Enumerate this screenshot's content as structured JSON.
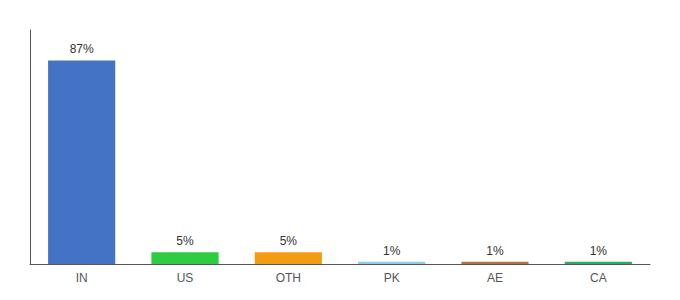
{
  "chart_data": {
    "type": "bar",
    "categories": [
      "IN",
      "US",
      "OTH",
      "PK",
      "AE",
      "CA"
    ],
    "values": [
      87,
      5,
      5,
      1,
      1,
      1
    ],
    "value_labels": [
      "87%",
      "5%",
      "5%",
      "1%",
      "1%",
      "1%"
    ],
    "colors": [
      "#4472c4",
      "#2ecc40",
      "#f39c12",
      "#87ceeb",
      "#c07030",
      "#27ae60"
    ],
    "ylim": [
      0,
      100
    ],
    "data_labels": true,
    "tick_labels": "x",
    "grid": false
  }
}
